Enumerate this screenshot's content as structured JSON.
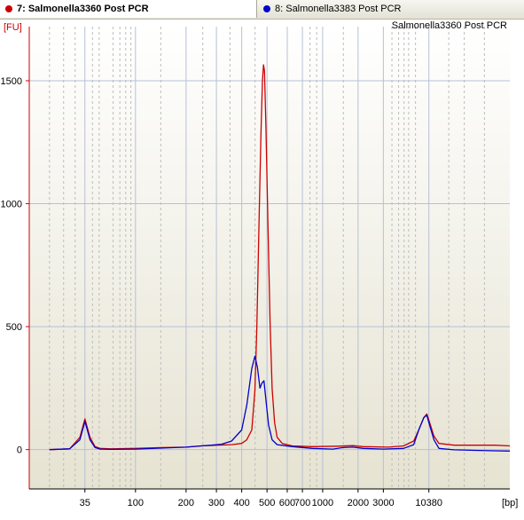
{
  "tabs": [
    {
      "label": "7: Salmonella3360 Post PCR",
      "color": "#cc0000",
      "active": true
    },
    {
      "label": "8: Salmonella3383 Post PCR",
      "color": "#0000cc",
      "active": false
    }
  ],
  "chart_data": {
    "type": "line",
    "title": "Salmonella3360 Post PCR",
    "ylabel": "[FU]",
    "xlabel": "[bp]",
    "grid": true,
    "ylim": [
      -160,
      1720
    ],
    "yticks": [
      0,
      500,
      1000,
      1500
    ],
    "xticks": [
      {
        "label": "35",
        "value": 35
      },
      {
        "label": "100",
        "value": 100
      },
      {
        "label": "200",
        "value": 200
      },
      {
        "label": "300",
        "value": 300
      },
      {
        "label": "400",
        "value": 400
      },
      {
        "label": "500",
        "value": 500
      },
      {
        "label": "600",
        "value": 600
      },
      {
        "label": "700",
        "value": 700
      },
      {
        "label": "1000",
        "value": 1000
      },
      {
        "label": "2000",
        "value": 2000
      },
      {
        "label": "3000",
        "value": 3000
      },
      {
        "label": "10380",
        "value": 10380
      }
    ],
    "x_axis_calibration": [
      [
        20,
        28
      ],
      [
        35,
        35
      ],
      [
        50,
        39
      ],
      [
        100,
        45
      ],
      [
        150,
        50
      ],
      [
        200,
        55
      ],
      [
        300,
        61
      ],
      [
        400,
        66
      ],
      [
        500,
        71
      ],
      [
        600,
        75
      ],
      [
        700,
        78
      ],
      [
        1000,
        82
      ],
      [
        2000,
        89
      ],
      [
        3000,
        94
      ],
      [
        7000,
        99
      ],
      [
        10380,
        103
      ],
      [
        20000,
        110
      ],
      [
        50000,
        119
      ]
    ],
    "series": [
      {
        "name": "7: Salmonella3360 Post PCR",
        "color": "#cc0000",
        "points": [
          [
            28,
            0
          ],
          [
            32,
            3
          ],
          [
            34,
            50
          ],
          [
            35,
            125
          ],
          [
            36,
            50
          ],
          [
            37,
            12
          ],
          [
            38,
            5
          ],
          [
            40,
            3
          ],
          [
            45,
            5
          ],
          [
            50,
            8
          ],
          [
            55,
            10
          ],
          [
            58,
            15
          ],
          [
            61,
            18
          ],
          [
            64,
            20
          ],
          [
            66,
            25
          ],
          [
            67,
            40
          ],
          [
            68,
            80
          ],
          [
            68.6,
            240
          ],
          [
            69,
            500
          ],
          [
            69.4,
            900
          ],
          [
            69.8,
            1280
          ],
          [
            70.1,
            1500
          ],
          [
            70.3,
            1565
          ],
          [
            70.5,
            1540
          ],
          [
            70.8,
            1300
          ],
          [
            71.2,
            900
          ],
          [
            71.6,
            520
          ],
          [
            72,
            250
          ],
          [
            72.5,
            110
          ],
          [
            73,
            50
          ],
          [
            74,
            25
          ],
          [
            76,
            15
          ],
          [
            80,
            12
          ],
          [
            85,
            14
          ],
          [
            88,
            16
          ],
          [
            90,
            12
          ],
          [
            95,
            10
          ],
          [
            98,
            15
          ],
          [
            100,
            35
          ],
          [
            101,
            80
          ],
          [
            102,
            130
          ],
          [
            102.6,
            145
          ],
          [
            103,
            120
          ],
          [
            104,
            55
          ],
          [
            105,
            25
          ],
          [
            108,
            18
          ],
          [
            112,
            18
          ],
          [
            116,
            18
          ],
          [
            119,
            15
          ]
        ]
      },
      {
        "name": "8: Salmonella3383 Post PCR",
        "color": "#0000cc",
        "points": [
          [
            28,
            0
          ],
          [
            32,
            3
          ],
          [
            34,
            40
          ],
          [
            35,
            115
          ],
          [
            36,
            40
          ],
          [
            37,
            8
          ],
          [
            38,
            2
          ],
          [
            40,
            1
          ],
          [
            45,
            2
          ],
          [
            50,
            6
          ],
          [
            55,
            10
          ],
          [
            58,
            15
          ],
          [
            60,
            18
          ],
          [
            62,
            22
          ],
          [
            64,
            35
          ],
          [
            66,
            80
          ],
          [
            67,
            180
          ],
          [
            68,
            330
          ],
          [
            68.6,
            380
          ],
          [
            69.1,
            335
          ],
          [
            69.6,
            250
          ],
          [
            70.0,
            270
          ],
          [
            70.4,
            280
          ],
          [
            70.8,
            200
          ],
          [
            71.3,
            100
          ],
          [
            72,
            40
          ],
          [
            73,
            20
          ],
          [
            76,
            12
          ],
          [
            80,
            5
          ],
          [
            84,
            2
          ],
          [
            86,
            8
          ],
          [
            88,
            10
          ],
          [
            90,
            5
          ],
          [
            94,
            2
          ],
          [
            98,
            5
          ],
          [
            100,
            20
          ],
          [
            101,
            80
          ],
          [
            102,
            130
          ],
          [
            102.6,
            140
          ],
          [
            103,
            110
          ],
          [
            104,
            40
          ],
          [
            105,
            5
          ],
          [
            108,
            -1
          ],
          [
            112,
            -3
          ],
          [
            116,
            -5
          ],
          [
            119,
            -6
          ]
        ]
      }
    ]
  }
}
